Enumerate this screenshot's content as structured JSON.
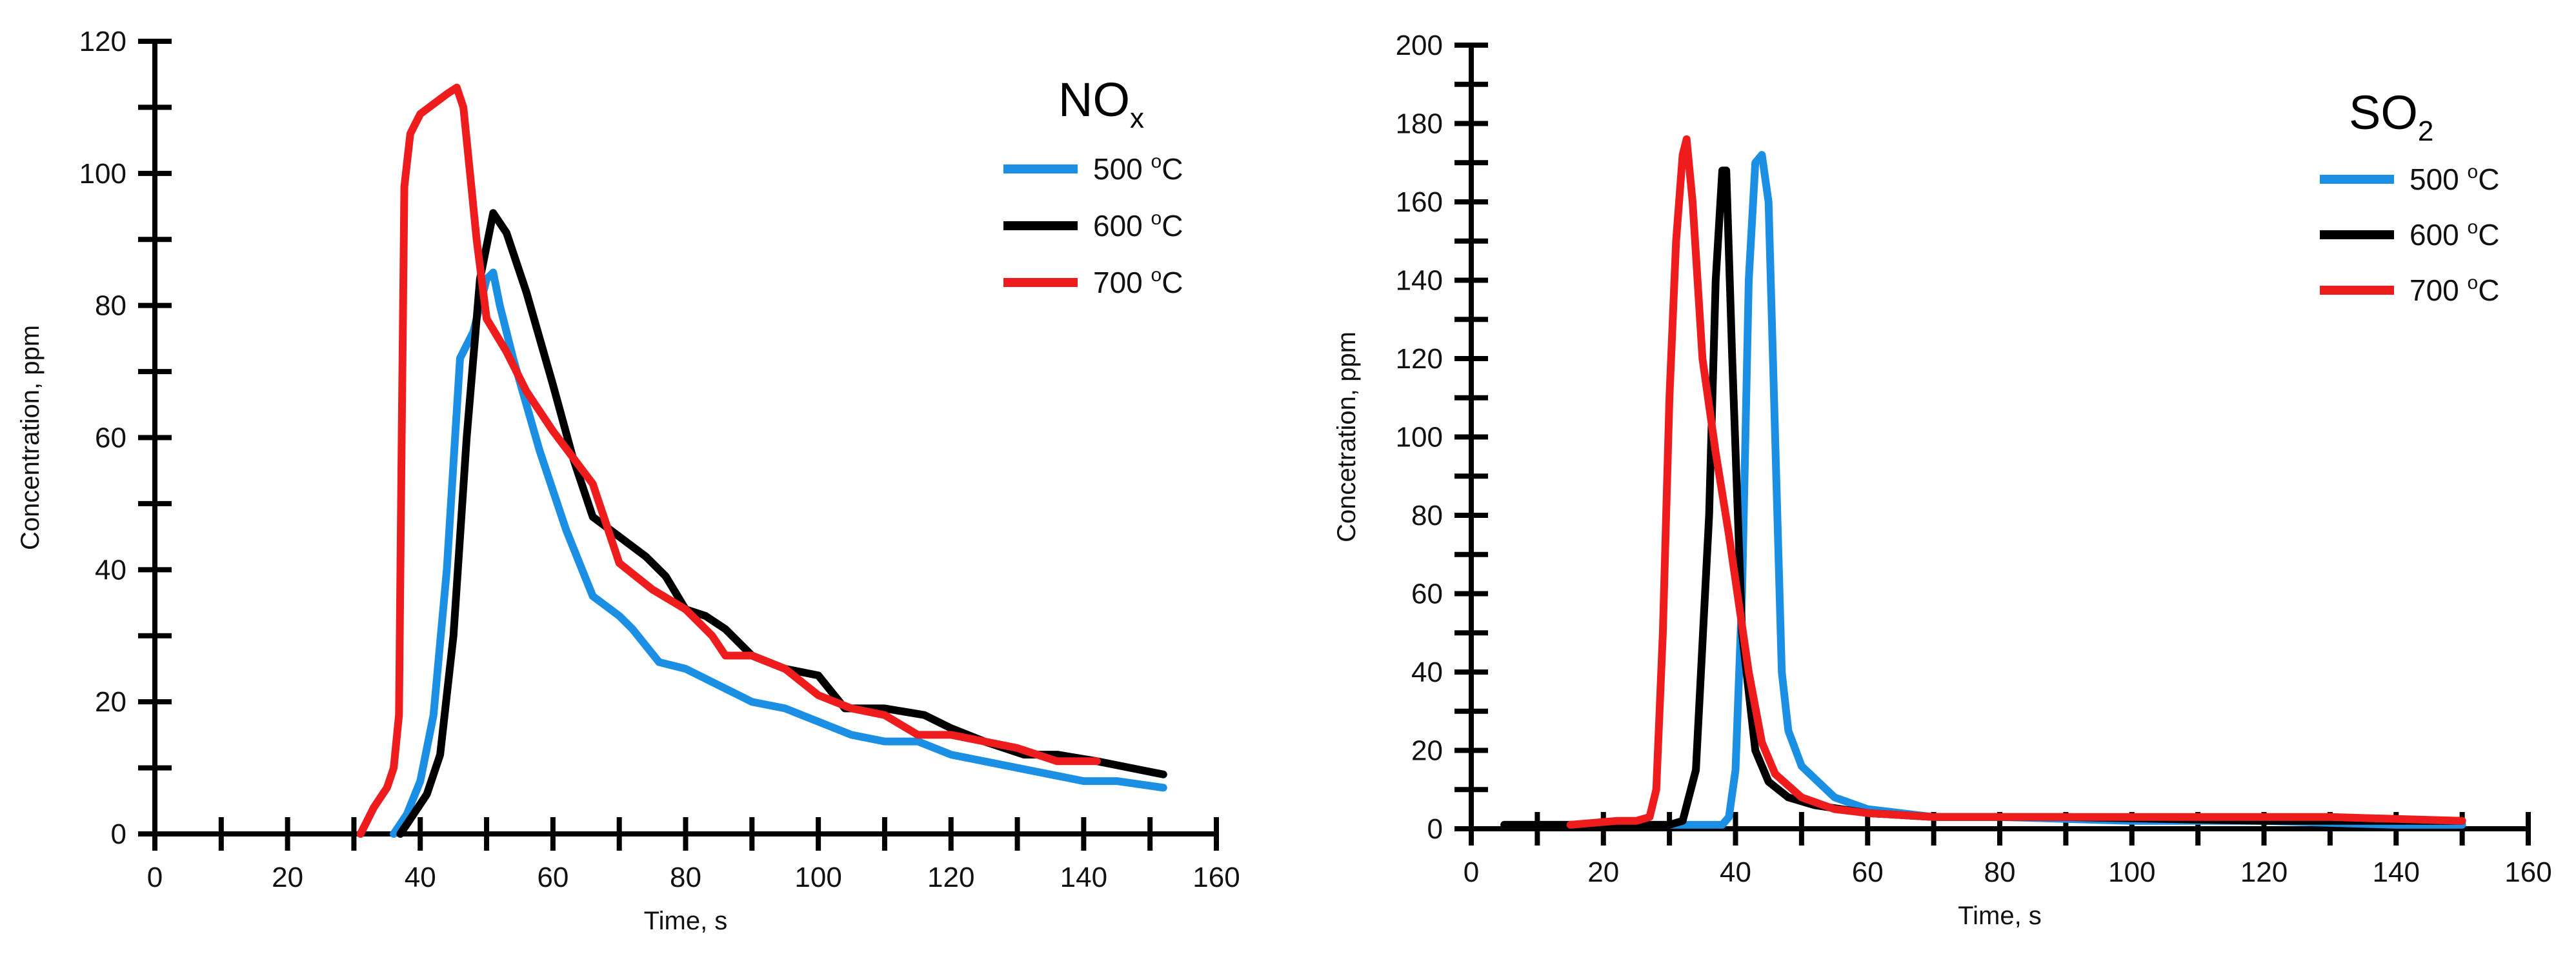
{
  "chart_data": [
    {
      "type": "line",
      "id": "nox",
      "title": "NO",
      "title_subscript": "x",
      "xlabel": "Time, s",
      "ylabel": "Concentration, ppm",
      "xlim": [
        0,
        160
      ],
      "ylim": [
        0,
        120
      ],
      "x_ticks": [
        0,
        20,
        40,
        60,
        80,
        100,
        120,
        140,
        160
      ],
      "y_ticks": [
        0,
        20,
        40,
        60,
        80,
        100,
        120
      ],
      "legend_position": "top-right",
      "series": [
        {
          "name": "500 °C",
          "temp": "500 ",
          "sup": "o",
          "unit": "C",
          "color": "#1a8fe3",
          "points": [
            [
              36,
              0
            ],
            [
              38,
              3
            ],
            [
              40,
              8
            ],
            [
              42,
              18
            ],
            [
              44,
              40
            ],
            [
              46,
              72
            ],
            [
              48,
              76
            ],
            [
              50,
              84
            ],
            [
              51,
              85
            ],
            [
              52,
              80
            ],
            [
              54,
              72
            ],
            [
              58,
              58
            ],
            [
              62,
              46
            ],
            [
              66,
              36
            ],
            [
              70,
              33
            ],
            [
              72,
              31
            ],
            [
              76,
              26
            ],
            [
              80,
              25
            ],
            [
              82,
              24
            ],
            [
              86,
              22
            ],
            [
              90,
              20
            ],
            [
              95,
              19
            ],
            [
              100,
              17
            ],
            [
              105,
              15
            ],
            [
              110,
              14
            ],
            [
              115,
              14
            ],
            [
              120,
              12
            ],
            [
              130,
              10
            ],
            [
              140,
              8
            ],
            [
              145,
              8
            ],
            [
              152,
              7
            ]
          ]
        },
        {
          "name": "600 °C",
          "temp": "600 ",
          "sup": "o",
          "unit": "C",
          "color": "#000000",
          "points": [
            [
              37,
              0
            ],
            [
              39,
              3
            ],
            [
              41,
              6
            ],
            [
              43,
              12
            ],
            [
              45,
              30
            ],
            [
              47,
              60
            ],
            [
              49,
              84
            ],
            [
              51,
              94
            ],
            [
              53,
              91
            ],
            [
              56,
              82
            ],
            [
              60,
              68
            ],
            [
              63,
              57
            ],
            [
              66,
              48
            ],
            [
              70,
              45
            ],
            [
              74,
              42
            ],
            [
              77,
              39
            ],
            [
              80,
              34
            ],
            [
              83,
              33
            ],
            [
              86,
              31
            ],
            [
              90,
              27
            ],
            [
              95,
              25
            ],
            [
              100,
              24
            ],
            [
              104,
              19
            ],
            [
              110,
              19
            ],
            [
              116,
              18
            ],
            [
              120,
              16
            ],
            [
              125,
              14
            ],
            [
              131,
              12
            ],
            [
              136,
              12
            ],
            [
              142,
              11
            ],
            [
              152,
              9
            ]
          ]
        },
        {
          "name": "700 °C",
          "temp": "700 ",
          "sup": "o",
          "unit": "C",
          "color": "#ee1c1c",
          "points": [
            [
              31,
              0
            ],
            [
              32,
              2
            ],
            [
              33,
              4
            ],
            [
              35,
              7
            ],
            [
              36,
              10
            ],
            [
              36.8,
              18
            ],
            [
              37.2,
              60
            ],
            [
              37.6,
              98
            ],
            [
              38.5,
              106
            ],
            [
              40,
              109
            ],
            [
              44,
              112
            ],
            [
              45.5,
              113
            ],
            [
              46.5,
              110
            ],
            [
              47.5,
              100
            ],
            [
              48.5,
              90
            ],
            [
              50,
              78
            ],
            [
              53,
              73
            ],
            [
              56,
              67
            ],
            [
              60,
              61
            ],
            [
              63,
              57
            ],
            [
              66,
              53
            ],
            [
              70,
              41
            ],
            [
              75,
              37
            ],
            [
              80,
              34
            ],
            [
              84,
              30
            ],
            [
              86,
              27
            ],
            [
              90,
              27
            ],
            [
              95,
              25
            ],
            [
              100,
              21
            ],
            [
              105,
              19
            ],
            [
              110,
              18
            ],
            [
              115,
              15
            ],
            [
              120,
              15
            ],
            [
              125,
              14
            ],
            [
              130,
              13
            ],
            [
              136,
              11
            ],
            [
              142,
              11
            ]
          ]
        }
      ]
    },
    {
      "type": "line",
      "id": "so2",
      "title": "SO",
      "title_subscript": "2",
      "xlabel": "Time, s",
      "ylabel": "Concetration, ppm",
      "xlim": [
        0,
        160
      ],
      "ylim": [
        0,
        200
      ],
      "x_ticks": [
        0,
        20,
        40,
        60,
        80,
        100,
        120,
        140,
        160
      ],
      "y_ticks": [
        0,
        20,
        40,
        60,
        80,
        100,
        120,
        140,
        160,
        180,
        200
      ],
      "legend_position": "top-right",
      "series": [
        {
          "name": "500 °C",
          "temp": "500 ",
          "sup": "o",
          "unit": "C",
          "color": "#1a8fe3",
          "points": [
            [
              5,
              1
            ],
            [
              20,
              1
            ],
            [
              30,
              1
            ],
            [
              35,
              1
            ],
            [
              38,
              1
            ],
            [
              39,
              3
            ],
            [
              40,
              15
            ],
            [
              41,
              60
            ],
            [
              42,
              140
            ],
            [
              43,
              170
            ],
            [
              44,
              172
            ],
            [
              45,
              160
            ],
            [
              46,
              100
            ],
            [
              47,
              40
            ],
            [
              48,
              25
            ],
            [
              50,
              16
            ],
            [
              55,
              8
            ],
            [
              60,
              5
            ],
            [
              70,
              3
            ],
            [
              80,
              3
            ],
            [
              100,
              2
            ],
            [
              120,
              2
            ],
            [
              140,
              1
            ],
            [
              150,
              1
            ]
          ]
        },
        {
          "name": "600 °C",
          "temp": "600 ",
          "sup": "o",
          "unit": "C",
          "color": "#000000",
          "points": [
            [
              5,
              1
            ],
            [
              20,
              1
            ],
            [
              30,
              1
            ],
            [
              32,
              2
            ],
            [
              34,
              15
            ],
            [
              36,
              80
            ],
            [
              37,
              140
            ],
            [
              38,
              168
            ],
            [
              38.6,
              168
            ],
            [
              39.5,
              120
            ],
            [
              41,
              50
            ],
            [
              43,
              20
            ],
            [
              45,
              12
            ],
            [
              48,
              8
            ],
            [
              52,
              6
            ],
            [
              60,
              4
            ],
            [
              70,
              3
            ],
            [
              90,
              3
            ],
            [
              120,
              2
            ],
            [
              150,
              2
            ]
          ]
        },
        {
          "name": "700 °C",
          "temp": "700 ",
          "sup": "o",
          "unit": "C",
          "color": "#ee1c1c",
          "points": [
            [
              15,
              1
            ],
            [
              22,
              2
            ],
            [
              25,
              2
            ],
            [
              27,
              3
            ],
            [
              28,
              10
            ],
            [
              29,
              50
            ],
            [
              30,
              110
            ],
            [
              31,
              150
            ],
            [
              32,
              172
            ],
            [
              32.6,
              176
            ],
            [
              33.5,
              160
            ],
            [
              35,
              120
            ],
            [
              37,
              96
            ],
            [
              39,
              75
            ],
            [
              42,
              40
            ],
            [
              44,
              22
            ],
            [
              46,
              14
            ],
            [
              50,
              8
            ],
            [
              55,
              5
            ],
            [
              60,
              4
            ],
            [
              70,
              3
            ],
            [
              90,
              3
            ],
            [
              110,
              3
            ],
            [
              130,
              3
            ],
            [
              150,
              2
            ]
          ]
        }
      ]
    }
  ]
}
